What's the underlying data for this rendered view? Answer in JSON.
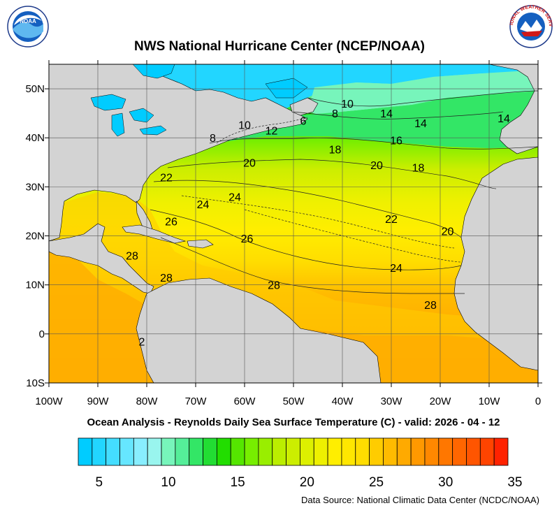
{
  "title": "NWS National Hurricane Center (NCEP/NOAA)",
  "subtitle": "Ocean Analysis - Reynolds Daily Sea Surface Temperature (C) - valid: 2026 - 04 - 12",
  "source": "Data Source: National Climatic Data Center (NCDC/NOAA)",
  "logos": {
    "left": {
      "text": "NOAA",
      "name": "noaa-logo"
    },
    "right": {
      "text": "NATIONAL WEATHER SERVICE",
      "name": "nws-logo"
    }
  },
  "axes": {
    "lat_labels": [
      "50N",
      "40N",
      "30N",
      "20N",
      "10N",
      "0",
      "10S"
    ],
    "lon_labels": [
      "100W",
      "90W",
      "80W",
      "70W",
      "60W",
      "50W",
      "40W",
      "30W",
      "20W",
      "10W",
      "0"
    ]
  },
  "contour_labels": [
    {
      "text": "10",
      "lon": -39,
      "lat": 47
    },
    {
      "text": "8",
      "lon": -41.5,
      "lat": 45
    },
    {
      "text": "6",
      "lon": -48,
      "lat": 43.5
    },
    {
      "text": "14",
      "lon": -31,
      "lat": 45
    },
    {
      "text": "14",
      "lon": -24,
      "lat": 43
    },
    {
      "text": "14",
      "lon": -7,
      "lat": 44
    },
    {
      "text": "10",
      "lon": -60,
      "lat": 42.7
    },
    {
      "text": "12",
      "lon": -54.5,
      "lat": 41.5
    },
    {
      "text": "8",
      "lon": -66.5,
      "lat": 40
    },
    {
      "text": "16",
      "lon": -29,
      "lat": 39.5
    },
    {
      "text": "18",
      "lon": -41.5,
      "lat": 37.7
    },
    {
      "text": "20",
      "lon": -59,
      "lat": 35
    },
    {
      "text": "20",
      "lon": -33,
      "lat": 34.5
    },
    {
      "text": "18",
      "lon": -24.5,
      "lat": 34
    },
    {
      "text": "22",
      "lon": -76,
      "lat": 32
    },
    {
      "text": "24",
      "lon": -62,
      "lat": 28
    },
    {
      "text": "24",
      "lon": -68.5,
      "lat": 26.5
    },
    {
      "text": "22",
      "lon": -30,
      "lat": 23.5
    },
    {
      "text": "26",
      "lon": -75,
      "lat": 23
    },
    {
      "text": "20",
      "lon": -18.5,
      "lat": 21
    },
    {
      "text": "26",
      "lon": -59.5,
      "lat": 19.5
    },
    {
      "text": "28",
      "lon": -83,
      "lat": 16
    },
    {
      "text": "24",
      "lon": -29,
      "lat": 13.5
    },
    {
      "text": "28",
      "lon": -76,
      "lat": 11.5
    },
    {
      "text": "28",
      "lon": -54,
      "lat": 10
    },
    {
      "text": "28",
      "lon": -22,
      "lat": 6
    },
    {
      "text": "2",
      "lon": -81,
      "lat": -1.5
    }
  ],
  "colorbar": {
    "min": 4,
    "max": 35,
    "step": 1,
    "tick_labels": [
      "5",
      "10",
      "15",
      "20",
      "25",
      "30",
      "35"
    ],
    "tick_values": [
      5,
      10,
      15,
      20,
      25,
      30,
      35
    ],
    "colors": [
      "#00ccff",
      "#22d6ff",
      "#44ddff",
      "#66e6ff",
      "#88eeff",
      "#99f5ee",
      "#77f5bb",
      "#55ee99",
      "#33e666",
      "#22dd33",
      "#22dd00",
      "#55e600",
      "#77ee00",
      "#99ee00",
      "#bbee00",
      "#ccee00",
      "#ddf000",
      "#eef000",
      "#ffee00",
      "#ffe600",
      "#ffdd00",
      "#ffcc00",
      "#ffbb00",
      "#ffaa00",
      "#ff9900",
      "#ff8800",
      "#ff7700",
      "#ff6600",
      "#ff5500",
      "#ff4400",
      "#ff2200"
    ]
  },
  "colors": {
    "land": "#d3d3d3",
    "lake": "#00ccff",
    "cold_water": "#22d6ff",
    "contour": "#222222"
  }
}
